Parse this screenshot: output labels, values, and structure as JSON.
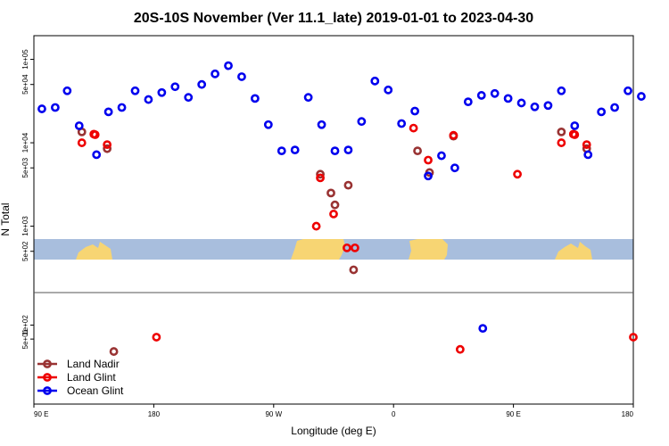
{
  "chart_data": {
    "type": "scatter",
    "title": "20S-10S November (Ver 11.1_late)   2019-01-01 to 2023-04-30",
    "xlabel": "Longitude (deg E)",
    "ylabel": "N Total",
    "x_ticks": [
      {
        "v": 90,
        "label": "90 E"
      },
      {
        "v": 180,
        "label": "180"
      },
      {
        "v": 270,
        "label": "90 W"
      },
      {
        "v": 360,
        "label": "0"
      },
      {
        "v": 450,
        "label": "90 E"
      },
      {
        "v": 540,
        "label": "180"
      }
    ],
    "xlim": [
      90,
      540
    ],
    "y_scale": "log",
    "upper_panel": {
      "ylim": [
        160,
        170000
      ],
      "ticks": [
        {
          "v": 500,
          "label": "5e+02"
        },
        {
          "v": 1000,
          "label": "1e+03"
        },
        {
          "v": 5000,
          "label": "5e+03"
        },
        {
          "v": 10000,
          "label": "1e+04"
        },
        {
          "v": 50000,
          "label": "5e+04"
        },
        {
          "v": 100000,
          "label": "1e+05"
        }
      ]
    },
    "lower_panel": {
      "ylim": [
        2,
        500
      ],
      "ticks": [
        {
          "v": 50,
          "label": "5e+01"
        },
        {
          "v": 100,
          "label": "1e+02"
        }
      ]
    },
    "legend_position": "bottom-left",
    "series": [
      {
        "name": "Land Nadir",
        "color": "#993333",
        "upper": [
          [
            126,
            13500
          ],
          [
            145,
            8500
          ],
          [
            305,
            4200
          ],
          [
            313,
            2500
          ],
          [
            316,
            1800
          ],
          [
            326,
            3100
          ],
          [
            330,
            300
          ],
          [
            378,
            8000
          ],
          [
            387,
            4400
          ],
          [
            405,
            12000
          ],
          [
            486,
            13500
          ],
          [
            505,
            8500
          ]
        ],
        "lower": [
          [
            150,
            27
          ]
        ]
      },
      {
        "name": "Land Glint",
        "color": "#ee0000",
        "upper": [
          [
            126,
            10000
          ],
          [
            135,
            12700
          ],
          [
            136,
            12500
          ],
          [
            145,
            9500
          ],
          [
            302,
            1000
          ],
          [
            305,
            3800
          ],
          [
            315,
            1400
          ],
          [
            325,
            550
          ],
          [
            331,
            550
          ],
          [
            375,
            15000
          ],
          [
            386,
            6200
          ],
          [
            405,
            12300
          ],
          [
            453,
            4200
          ],
          [
            486,
            10000
          ],
          [
            495,
            12700
          ],
          [
            496,
            12500
          ],
          [
            505,
            9500
          ]
        ],
        "lower": [
          [
            182,
            55
          ],
          [
            410,
            30
          ],
          [
            540,
            55
          ]
        ]
      },
      {
        "name": "Ocean Glint",
        "color": "#0000ee",
        "upper": [
          [
            96,
            25500
          ],
          [
            106,
            26500
          ],
          [
            115,
            42000
          ],
          [
            124,
            16000
          ],
          [
            137,
            7200
          ],
          [
            146,
            23500
          ],
          [
            156,
            26500
          ],
          [
            166,
            42000
          ],
          [
            176,
            33000
          ],
          [
            186,
            40000
          ],
          [
            196,
            47000
          ],
          [
            206,
            35000
          ],
          [
            216,
            50000
          ],
          [
            226,
            67000
          ],
          [
            236,
            84000
          ],
          [
            246,
            62000
          ],
          [
            256,
            34000
          ],
          [
            266,
            16500
          ],
          [
            276,
            8000
          ],
          [
            286,
            8200
          ],
          [
            296,
            35000
          ],
          [
            306,
            16500
          ],
          [
            316,
            8000
          ],
          [
            326,
            8200
          ],
          [
            336,
            18000
          ],
          [
            346,
            55000
          ],
          [
            356,
            43000
          ],
          [
            366,
            17000
          ],
          [
            376,
            24000
          ],
          [
            386,
            4000
          ],
          [
            396,
            7000
          ],
          [
            406,
            5000
          ],
          [
            416,
            31000
          ],
          [
            426,
            37000
          ],
          [
            436,
            39000
          ],
          [
            446,
            34000
          ],
          [
            456,
            30000
          ],
          [
            466,
            27000
          ],
          [
            476,
            28000
          ],
          [
            486,
            42000
          ],
          [
            496,
            16000
          ],
          [
            506,
            7200
          ],
          [
            516,
            23500
          ],
          [
            526,
            26500
          ],
          [
            536,
            42000
          ],
          [
            546,
            36000
          ]
        ],
        "lower": [
          [
            427,
            85
          ]
        ]
      }
    ]
  }
}
